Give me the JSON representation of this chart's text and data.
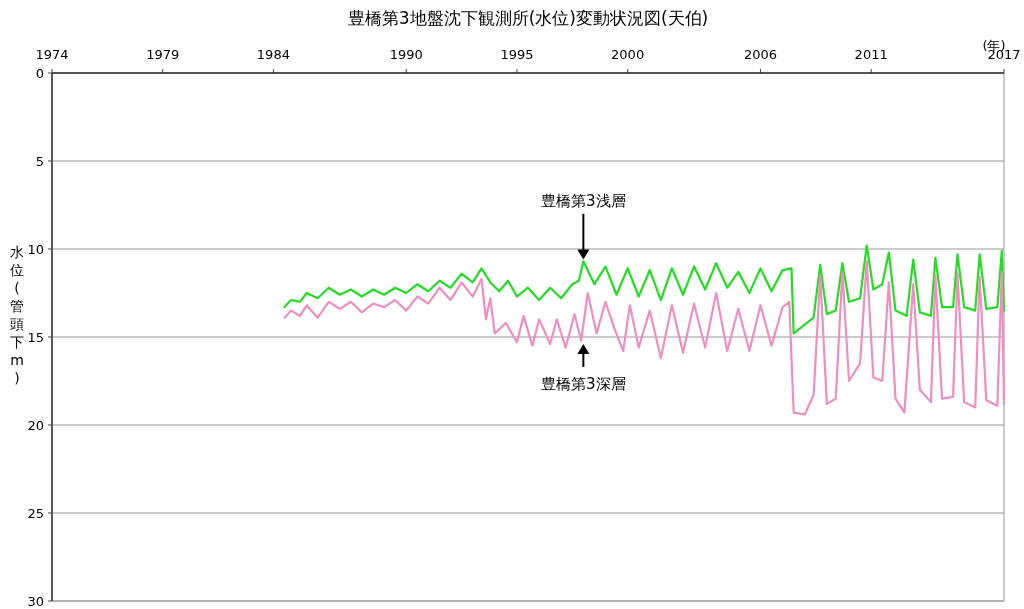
{
  "chart_data": {
    "type": "line",
    "title": "豊橋第3地盤沈下観測所(水位)変動状況図(天伯)",
    "xlabel": "(年)",
    "ylabel": "水位(管頭下m)",
    "xlim": [
      1974,
      2017
    ],
    "ylim": [
      30,
      0
    ],
    "xticks": [
      1974,
      1979,
      1984,
      1990,
      1995,
      2000,
      2006,
      2011,
      2017
    ],
    "yticks": [
      0,
      5,
      10,
      15,
      20,
      25,
      30
    ],
    "grid": "y",
    "marker": "none",
    "line_style": "solid",
    "series": [
      {
        "name": "豊橋第3浅層",
        "color": "#22dd22",
        "x": [
          1984.5,
          1984.8,
          1985.2,
          1985.5,
          1986.0,
          1986.5,
          1987.0,
          1987.5,
          1988.0,
          1988.5,
          1989.0,
          1989.5,
          1990.0,
          1990.5,
          1991.0,
          1991.5,
          1992.0,
          1992.5,
          1993.0,
          1993.4,
          1993.8,
          1994.2,
          1994.6,
          1995.0,
          1995.5,
          1996.0,
          1996.5,
          1997.0,
          1997.5,
          1997.8,
          1998.0,
          1998.5,
          1999.0,
          1999.5,
          2000.0,
          2000.5,
          2001.0,
          2001.5,
          2002.0,
          2002.5,
          2003.0,
          2003.5,
          2004.0,
          2004.5,
          2005.0,
          2005.5,
          2006.0,
          2006.5,
          2007.0,
          2007.4,
          2007.5,
          2008.0,
          2008.4,
          2008.7,
          2009.0,
          2009.4,
          2009.7,
          2010.0,
          2010.5,
          2010.8,
          2011.1,
          2011.5,
          2011.8,
          2012.1,
          2012.6,
          2012.9,
          2013.2,
          2013.7,
          2013.9,
          2014.2,
          2014.7,
          2014.9,
          2015.2,
          2015.7,
          2015.9,
          2016.2,
          2016.7,
          2016.9,
          2017.0
        ],
        "values": [
          13.3,
          12.9,
          13.0,
          12.5,
          12.8,
          12.2,
          12.6,
          12.3,
          12.7,
          12.3,
          12.6,
          12.2,
          12.5,
          12.0,
          12.4,
          11.8,
          12.2,
          11.4,
          11.9,
          11.1,
          11.9,
          12.4,
          11.8,
          12.7,
          12.2,
          12.9,
          12.2,
          12.8,
          12.0,
          11.8,
          10.7,
          12.0,
          11.0,
          12.6,
          11.1,
          12.7,
          11.2,
          12.9,
          11.1,
          12.6,
          11.0,
          12.3,
          10.8,
          12.2,
          11.3,
          12.5,
          11.1,
          12.4,
          11.2,
          11.1,
          14.8,
          14.3,
          13.9,
          10.9,
          13.7,
          13.5,
          10.8,
          13.0,
          12.8,
          9.8,
          12.3,
          12.0,
          10.2,
          13.5,
          13.8,
          10.6,
          13.6,
          13.8,
          10.5,
          13.3,
          13.3,
          10.3,
          13.3,
          13.5,
          10.3,
          13.4,
          13.3,
          10.1,
          13.5
        ]
      },
      {
        "name": "豊橋第3深層",
        "color": "#f08ec0",
        "x": [
          1984.5,
          1984.8,
          1985.2,
          1985.5,
          1986.0,
          1986.5,
          1987.0,
          1987.5,
          1988.0,
          1988.5,
          1989.0,
          1989.5,
          1990.0,
          1990.5,
          1991.0,
          1991.5,
          1992.0,
          1992.5,
          1993.0,
          1993.4,
          1993.6,
          1993.8,
          1994.0,
          1994.5,
          1995.0,
          1995.3,
          1995.7,
          1996.0,
          1996.5,
          1996.8,
          1997.2,
          1997.6,
          1997.9,
          1998.2,
          1998.6,
          1999.0,
          1999.4,
          1999.8,
          2000.1,
          2000.5,
          2001.0,
          2001.5,
          2002.0,
          2002.5,
          2003.0,
          2003.5,
          2004.0,
          2004.5,
          2005.0,
          2005.5,
          2006.0,
          2006.5,
          2007.0,
          2007.3,
          2007.5,
          2008.0,
          2008.4,
          2008.7,
          2009.0,
          2009.4,
          2009.7,
          2010.0,
          2010.5,
          2010.8,
          2011.1,
          2011.5,
          2011.8,
          2012.1,
          2012.5,
          2012.9,
          2013.2,
          2013.7,
          2013.9,
          2014.2,
          2014.7,
          2014.9,
          2015.2,
          2015.7,
          2015.9,
          2016.2,
          2016.7,
          2016.9,
          2017.0
        ],
        "values": [
          13.9,
          13.5,
          13.8,
          13.2,
          13.9,
          13.0,
          13.4,
          13.0,
          13.6,
          13.1,
          13.3,
          12.9,
          13.5,
          12.7,
          13.1,
          12.2,
          12.9,
          11.9,
          12.7,
          11.7,
          14.0,
          12.8,
          14.8,
          14.2,
          15.3,
          13.8,
          15.5,
          14.0,
          15.4,
          14.0,
          15.6,
          13.7,
          15.2,
          12.5,
          14.8,
          13.0,
          14.5,
          15.8,
          13.2,
          15.6,
          13.5,
          16.2,
          13.2,
          15.9,
          13.1,
          15.6,
          12.5,
          15.8,
          13.4,
          15.8,
          13.2,
          15.5,
          13.3,
          13.0,
          19.3,
          19.4,
          18.3,
          11.5,
          18.8,
          18.5,
          11.3,
          17.5,
          16.5,
          10.7,
          17.3,
          17.5,
          11.9,
          18.5,
          19.3,
          12.0,
          18.0,
          18.7,
          11.5,
          18.5,
          18.4,
          11.4,
          18.7,
          19.0,
          11.6,
          18.6,
          18.9,
          11.3,
          18.8
        ]
      }
    ]
  }
}
